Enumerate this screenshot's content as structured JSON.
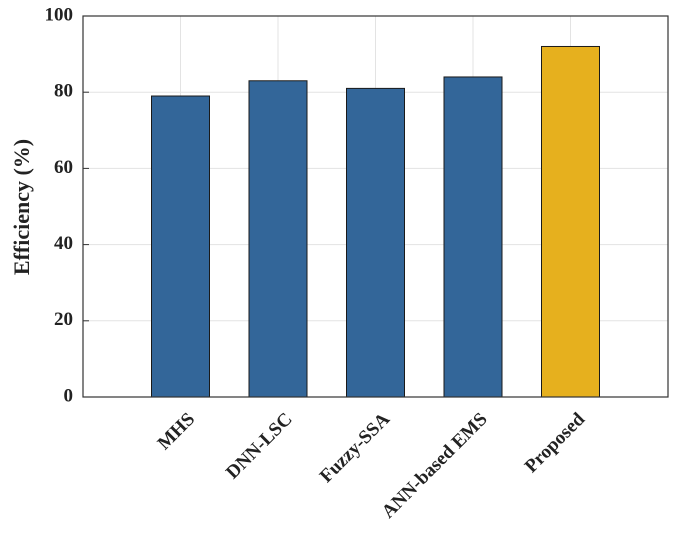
{
  "chart_data": {
    "type": "bar",
    "y_label": "Efficiency (%)",
    "categories": [
      "MHS",
      "DNN-LSC",
      "Fuzzy-SSA",
      "ANN-based EMS",
      "Proposed"
    ],
    "values": [
      79,
      83,
      81,
      84,
      92
    ],
    "colors": [
      "#336699",
      "#336699",
      "#336699",
      "#336699",
      "#e6b01e"
    ],
    "ylim": [
      0,
      100
    ],
    "yticks": [
      0,
      20,
      40,
      60,
      80,
      100
    ],
    "grid": true
  }
}
